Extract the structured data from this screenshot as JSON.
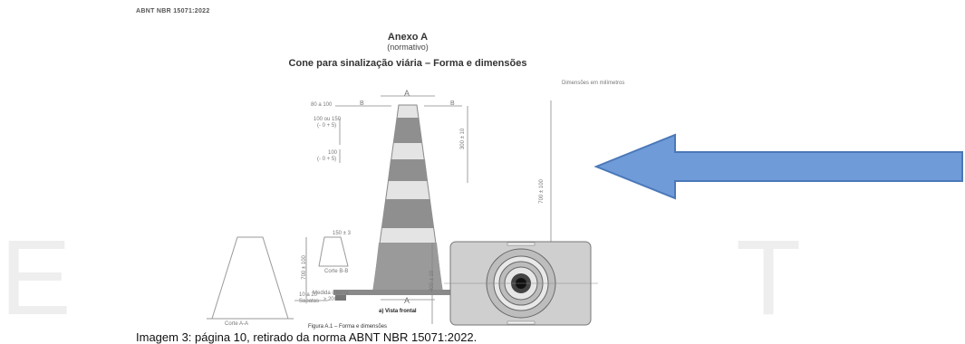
{
  "document": {
    "standard_header": "ABNT NBR 15071:2022",
    "annex_title": "Anexo A",
    "annex_type": "(normativo)",
    "section_title": "Cone para sinalização viária – Forma e dimensões",
    "dimension_note": "Dimensões em milímetros"
  },
  "figure": {
    "labels": {
      "top_section": "A",
      "bottom_section": "A",
      "b_left": "B",
      "b_right": "B",
      "top_width": "80 a 100",
      "band1": "100 ou 150",
      "band1_tol": "(- 0 + 5)",
      "band2": "100",
      "band2_tol": "(- 0 + 5)",
      "upper_height": "300 ± 10",
      "total_height": "700 ± 100",
      "base_range": "10 a 20",
      "base_label": "Sapatas",
      "view_caption": "a) Vista frontal",
      "cut_bb": "Corte B-B",
      "cut_aa": "Corte A-A",
      "side_height": "700 ± 100",
      "inner_note": "Medida interna",
      "inner_note2": "≥ 200",
      "top_dim": "150 ± 3",
      "base_dim": "400 ± 10",
      "figure_caption": "Figura A.1 – Forma e dimensões"
    }
  },
  "caption": "Imagem 3: página 10, retirado da norma ABNT NBR 15071:2022.",
  "watermark": {
    "left": "E",
    "right": "T"
  },
  "colors": {
    "arrow_fill": "#6f9bd9",
    "arrow_stroke": "#4a78b8",
    "cone_dark": "#8a8a8a",
    "cone_light": "#e2e2e2"
  }
}
